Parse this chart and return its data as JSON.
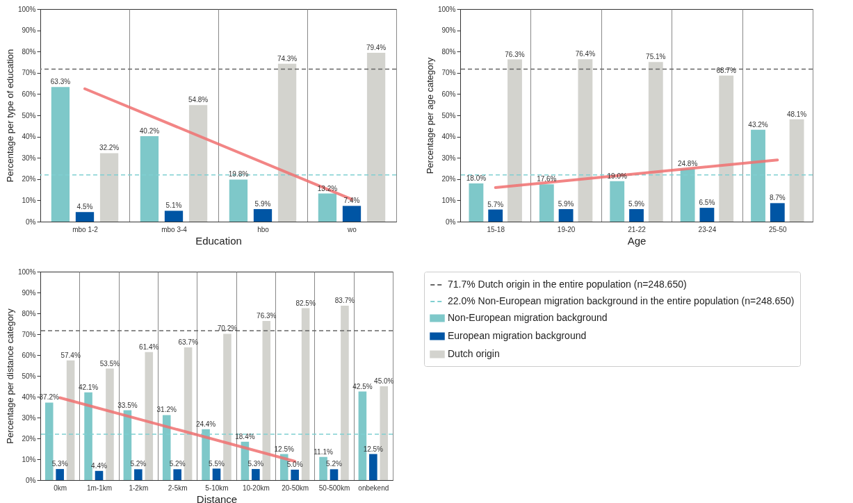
{
  "chart_data": [
    {
      "type": "bar",
      "xlabel": "Education",
      "ylabel": "Percentage per type of education",
      "categories": [
        "mbo 1-2",
        "mbo 3-4",
        "hbo",
        "wo"
      ],
      "series": [
        {
          "color": "#7ec8c9",
          "values": [
            63.3,
            40.2,
            19.8,
            13.2
          ],
          "value_labels": [
            "63.3%",
            "40.2%",
            "19.8%",
            "13.2%"
          ]
        },
        {
          "color": "#0055a4",
          "values": [
            4.5,
            5.1,
            5.9,
            7.4
          ],
          "value_labels": [
            "4.5%",
            "5.1%",
            "5.9%",
            "7.4%"
          ]
        },
        {
          "color": "#d3d3ce",
          "values": [
            32.2,
            54.8,
            74.3,
            79.4
          ],
          "value_labels": [
            "32.2%",
            "54.8%",
            "74.3%",
            "79.4%"
          ]
        },
        {
          "type": "line",
          "color": "#f07070",
          "x": [
            "mbo 1-2",
            "wo"
          ],
          "values": [
            62.5,
            10.5
          ]
        }
      ],
      "ylim": [
        0,
        100
      ],
      "yticks": [
        {
          "value": 0,
          "label": "0%"
        },
        {
          "value": 10,
          "label": "10%"
        },
        {
          "value": 20,
          "label": "20%"
        },
        {
          "value": 30,
          "label": "30%"
        },
        {
          "value": 40,
          "label": "40%"
        },
        {
          "value": 50,
          "label": "50%"
        },
        {
          "value": 60,
          "label": "60%"
        },
        {
          "value": 70,
          "label": "70%"
        },
        {
          "value": 80,
          "label": "80%"
        },
        {
          "value": 90,
          "label": "90%"
        },
        {
          "value": 100,
          "label": "100%"
        }
      ],
      "grid": "x",
      "ref_lines": [
        {
          "axis": "y",
          "value": 71.7,
          "color": "#666666",
          "line_style": "dashed"
        },
        {
          "axis": "y",
          "value": 22.0,
          "color": "#7fcfd1",
          "line_style": "dashed"
        }
      ]
    },
    {
      "type": "bar",
      "xlabel": "Age",
      "ylabel": "Percentage per age category",
      "categories": [
        "15-18",
        "19-20",
        "21-22",
        "23-24",
        "25-50"
      ],
      "series": [
        {
          "color": "#7ec8c9",
          "values": [
            18.0,
            17.6,
            19.0,
            24.8,
            43.2
          ],
          "value_labels": [
            "18.0%",
            "17.6%",
            "19.0%",
            "24.8%",
            "43.2%"
          ]
        },
        {
          "color": "#0055a4",
          "values": [
            5.7,
            5.9,
            5.9,
            6.5,
            8.7
          ],
          "value_labels": [
            "5.7%",
            "5.9%",
            "5.9%",
            "6.5%",
            "8.7%"
          ]
        },
        {
          "color": "#d3d3ce",
          "values": [
            76.3,
            76.4,
            75.1,
            68.7,
            48.1
          ],
          "value_labels": [
            "76.3%",
            "76.4%",
            "75.1%",
            "68.7%",
            "48.1%"
          ]
        },
        {
          "type": "line",
          "color": "#f07070",
          "x": [
            "15-18",
            "25-50"
          ],
          "values": [
            16.0,
            29.0
          ]
        }
      ],
      "ylim": [
        0,
        100
      ],
      "yticks": [
        {
          "value": 0,
          "label": "0%"
        },
        {
          "value": 10,
          "label": "10%"
        },
        {
          "value": 20,
          "label": "20%"
        },
        {
          "value": 30,
          "label": "30%"
        },
        {
          "value": 40,
          "label": "40%"
        },
        {
          "value": 50,
          "label": "50%"
        },
        {
          "value": 60,
          "label": "60%"
        },
        {
          "value": 70,
          "label": "70%"
        },
        {
          "value": 80,
          "label": "80%"
        },
        {
          "value": 90,
          "label": "90%"
        },
        {
          "value": 100,
          "label": "100%"
        }
      ],
      "grid": "x",
      "ref_lines": [
        {
          "axis": "y",
          "value": 71.7,
          "color": "#666666",
          "line_style": "dashed"
        },
        {
          "axis": "y",
          "value": 22.0,
          "color": "#7fcfd1",
          "line_style": "dashed"
        }
      ]
    },
    {
      "type": "bar",
      "xlabel": "Distance",
      "ylabel": "Percentage per distance category",
      "categories": [
        "0km",
        "1m-1km",
        "1-2km",
        "2-5km",
        "5-10km",
        "10-20km",
        "20-50km",
        "50-500km",
        "onbekend"
      ],
      "series": [
        {
          "name": "Non-European migration background",
          "color": "#7ec8c9",
          "values": [
            37.2,
            42.1,
            33.5,
            31.2,
            24.4,
            18.4,
            12.5,
            11.1,
            42.5
          ],
          "value_labels": [
            "37.2%",
            "42.1%",
            "33.5%",
            "31.2%",
            "24.4%",
            "18.4%",
            "12.5%",
            "11.1%",
            "42.5%"
          ]
        },
        {
          "name": "European migration background",
          "color": "#0055a4",
          "values": [
            5.3,
            4.4,
            5.2,
            5.2,
            5.5,
            5.3,
            5.0,
            5.2,
            12.5
          ],
          "value_labels": [
            "5.3%",
            "4.4%",
            "5.2%",
            "5.2%",
            "5.5%",
            "5.3%",
            "5.0%",
            "5.2%",
            "12.5%"
          ]
        },
        {
          "name": "Dutch origin",
          "color": "#d3d3ce",
          "values": [
            57.4,
            53.5,
            61.4,
            63.7,
            70.2,
            76.3,
            82.5,
            83.7,
            45.0
          ],
          "value_labels": [
            "57.4%",
            "53.5%",
            "61.4%",
            "63.7%",
            "70.2%",
            "76.3%",
            "82.5%",
            "83.7%",
            "45.0%"
          ]
        },
        {
          "type": "line",
          "color": "#f07070",
          "x": [
            "0km",
            "20-50km"
          ],
          "values": [
            39.5,
            9.0
          ]
        }
      ],
      "ylim": [
        0,
        100
      ],
      "yticks": [
        {
          "value": 0,
          "label": "0%"
        },
        {
          "value": 10,
          "label": "10%"
        },
        {
          "value": 20,
          "label": "20%"
        },
        {
          "value": 30,
          "label": "30%"
        },
        {
          "value": 40,
          "label": "40%"
        },
        {
          "value": 50,
          "label": "50%"
        },
        {
          "value": 60,
          "label": "60%"
        },
        {
          "value": 70,
          "label": "70%"
        },
        {
          "value": 80,
          "label": "80%"
        },
        {
          "value": 90,
          "label": "90%"
        },
        {
          "value": 100,
          "label": "100%"
        }
      ],
      "grid": "x",
      "legend": "right",
      "ref_lines": [
        {
          "axis": "y",
          "value": 71.7,
          "label": "71.7% Dutch origin in the entire population (n=248.650)",
          "color": "#666666",
          "line_style": "dashed"
        },
        {
          "axis": "y",
          "value": 22.0,
          "label": "22.0% Non-European migration background in the entire population (n=248.650)",
          "color": "#7fcfd1",
          "line_style": "dashed"
        }
      ]
    }
  ]
}
